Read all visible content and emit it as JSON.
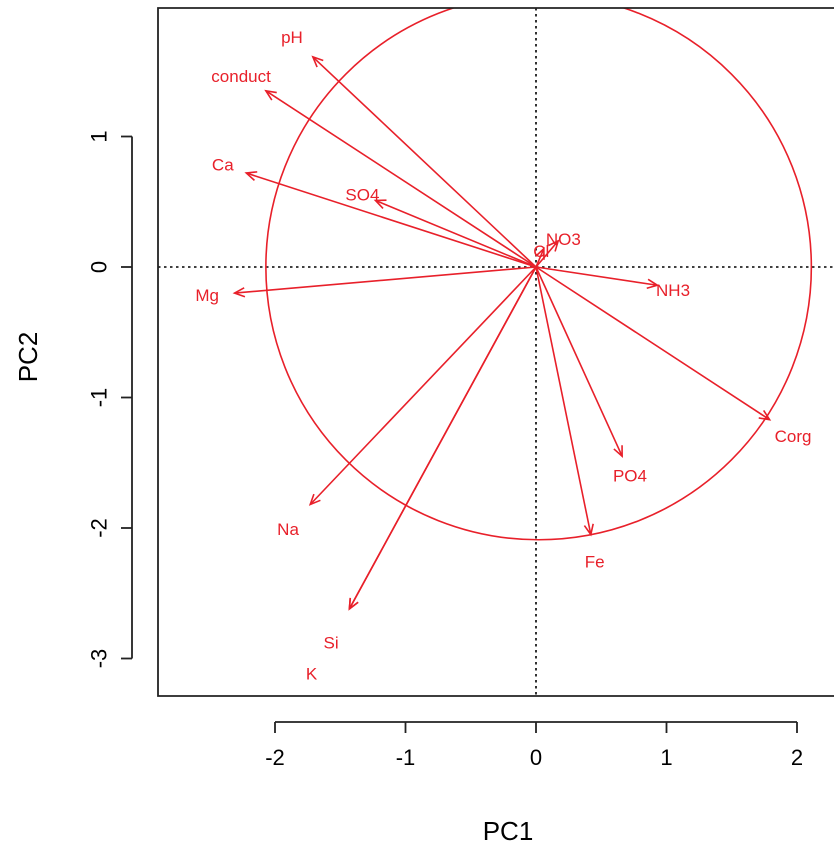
{
  "chart_data": {
    "type": "biplot",
    "xlabel": "PC1",
    "ylabel": "PC2",
    "xlim": [
      -2.9,
      2.2
    ],
    "ylim": [
      -3.3,
      2.0
    ],
    "x_ticks": [
      -2,
      -1,
      0,
      1,
      2
    ],
    "y_ticks": [
      -3,
      -2,
      -1,
      0,
      1
    ],
    "x_tick_labels": [
      "-2",
      "-1",
      "0",
      "1",
      "2"
    ],
    "y_tick_labels": [
      "-3",
      "-2",
      "-1",
      "0",
      "1"
    ],
    "reference_lines": {
      "x": 0,
      "y": 0,
      "style": "dotted"
    },
    "circle": {
      "center": [
        0.02,
        0.0
      ],
      "radius": 2.09
    },
    "color": "#e8202a",
    "arrows": [
      {
        "name": "pH",
        "x": -1.71,
        "y": 1.61,
        "label_x": -1.87,
        "label_y": 1.76
      },
      {
        "name": "conduct",
        "x": -2.07,
        "y": 1.35,
        "label_x": -2.26,
        "label_y": 1.46
      },
      {
        "name": "Ca",
        "x": -2.22,
        "y": 0.72,
        "label_x": -2.4,
        "label_y": 0.78
      },
      {
        "name": "SO4",
        "x": -1.23,
        "y": 0.51,
        "label_x": -1.33,
        "label_y": 0.55
      },
      {
        "name": "NO3",
        "x": 0.17,
        "y": 0.2,
        "label_x": 0.21,
        "label_y": 0.21
      },
      {
        "name": "Cl",
        "x": 0.06,
        "y": 0.14,
        "label_x": 0.04,
        "label_y": 0.12
      },
      {
        "name": "Mg",
        "x": -2.31,
        "y": -0.2,
        "label_x": -2.52,
        "label_y": -0.22
      },
      {
        "name": "NH3",
        "x": 0.93,
        "y": -0.14,
        "label_x": 1.05,
        "label_y": -0.18
      },
      {
        "name": "Corg",
        "x": 1.79,
        "y": -1.17,
        "label_x": 1.97,
        "label_y": -1.3
      },
      {
        "name": "PO4",
        "x": 0.66,
        "y": -1.45,
        "label_x": 0.72,
        "label_y": -1.6
      },
      {
        "name": "Fe",
        "x": 0.42,
        "y": -2.05,
        "label_x": 0.45,
        "label_y": -2.26
      },
      {
        "name": "Na",
        "x": -1.73,
        "y": -1.82,
        "label_x": -1.9,
        "label_y": -2.01
      },
      {
        "name": "Si",
        "x": -1.43,
        "y": -2.62,
        "label_x": -1.57,
        "label_y": -2.88
      },
      {
        "name": "K",
        "x": -1.43,
        "y": -2.62,
        "label_x": -1.72,
        "label_y": -3.12
      }
    ]
  }
}
